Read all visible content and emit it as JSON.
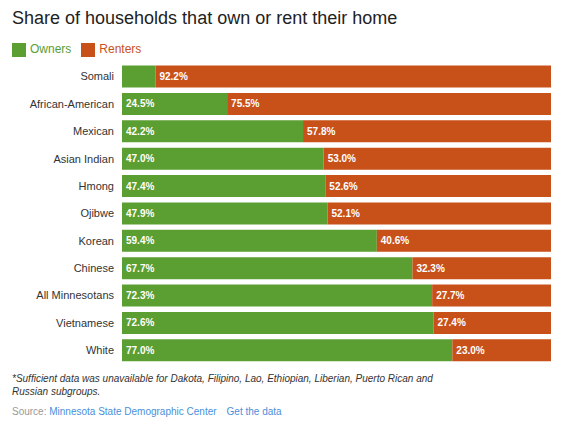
{
  "chart_data": {
    "type": "bar",
    "title": "Share of households that own or rent their home",
    "orientation": "horizontal",
    "stacked": true,
    "categories": [
      "Somali",
      "African-American",
      "Mexican",
      "Asian Indian",
      "Hmong",
      "Ojibwe",
      "Korean",
      "Chinese",
      "All Minnesotans",
      "Vietnamese",
      "White"
    ],
    "series": [
      {
        "name": "Owners",
        "color": "#5b9e32",
        "values": [
          7.8,
          24.5,
          42.2,
          47.0,
          47.4,
          47.9,
          59.4,
          67.7,
          72.3,
          72.6,
          77.0
        ],
        "value_labels": [
          null,
          "24.5%",
          "42.2%",
          "47.0%",
          "47.4%",
          "47.9%",
          "59.4%",
          "67.7%",
          "72.3%",
          "72.6%",
          "77.0%"
        ]
      },
      {
        "name": "Renters",
        "color": "#c8511a",
        "values": [
          92.2,
          75.5,
          57.8,
          53.0,
          52.6,
          52.1,
          40.6,
          32.3,
          27.7,
          27.4,
          23.0
        ],
        "value_labels": [
          "92.2%",
          "75.5%",
          "57.8%",
          "53.0%",
          "52.6%",
          "52.1%",
          "40.6%",
          "32.3%",
          "27.7%",
          "27.4%",
          "23.0%"
        ]
      }
    ],
    "xlim": [
      0,
      100
    ],
    "legend": "upper left",
    "data_labels": true,
    "tick_labels": "y",
    "annotations": [
      "*Sufficient data was unavailable for Dakota, Filipino, Lao, Ethiopian, Liberian, Puerto Rican and\nRussian subgroups.",
      "Source: ",
      "Minnesota State Demographic Center",
      "Get the data"
    ]
  }
}
